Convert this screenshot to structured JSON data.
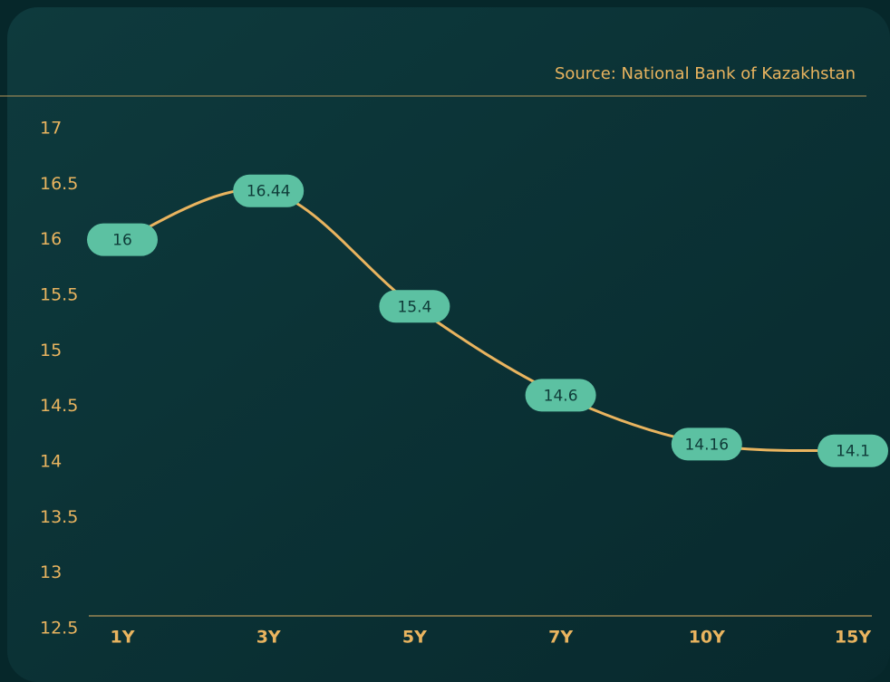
{
  "chart_data": {
    "type": "line",
    "source": "Source: National Bank of Kazakhstan",
    "categories": [
      "1Y",
      "3Y",
      "5Y",
      "7Y",
      "10Y",
      "15Y"
    ],
    "values": [
      16,
      16.44,
      15.4,
      14.6,
      14.16,
      14.1
    ],
    "color": "#e9b45f",
    "label_color": "#5cc1a2",
    "ylim": [
      12.5,
      17
    ],
    "yticks": [
      12.5,
      13,
      13.5,
      14,
      14.5,
      15,
      15.5,
      16,
      16.5,
      17
    ],
    "grid": false
  }
}
